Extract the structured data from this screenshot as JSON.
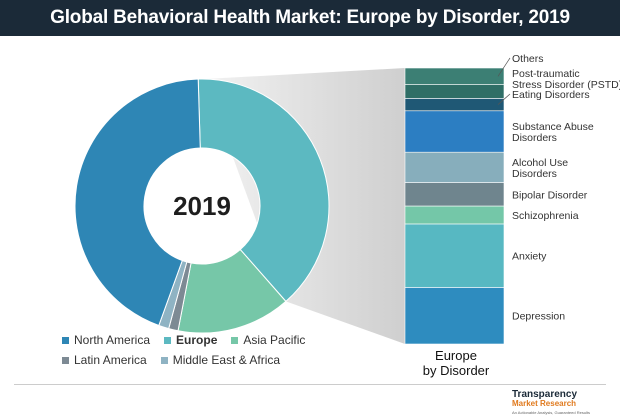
{
  "header": {
    "title": "Global Behavioral Health Market: Europe by Disorder, 2019"
  },
  "colors": {
    "north_america": "#2e86b5",
    "europe": "#5cb9c1",
    "asia_pacific": "#76c7a8",
    "latin_america": "#7d8a94",
    "middle_east_africa": "#8fb3c3",
    "connector": "#d8d8d8",
    "title_bg": "#1b2a38"
  },
  "chart_data": [
    {
      "type": "pie",
      "variant": "donut",
      "center_label": "2019",
      "slices": [
        {
          "name": "North America",
          "value": 44.0,
          "color": "#2e86b5"
        },
        {
          "name": "Europe",
          "value": 39.0,
          "color": "#5cb9c1"
        },
        {
          "name": "Asia Pacific",
          "value": 14.5,
          "color": "#76c7a8"
        },
        {
          "name": "Latin America",
          "value": 1.2,
          "color": "#7d8a94"
        },
        {
          "name": "Middle East & Africa",
          "value": 1.3,
          "color": "#8fb3c3"
        }
      ],
      "legend": [
        {
          "label": "North America",
          "color": "#2e86b5",
          "bold": false
        },
        {
          "label": "Europe",
          "color": "#5cb9c1",
          "bold": true
        },
        {
          "label": "Asia Pacific",
          "color": "#76c7a8",
          "bold": false
        },
        {
          "label": "Latin America",
          "color": "#7d8a94",
          "bold": false
        },
        {
          "label": "Middle East & Africa",
          "color": "#8fb3c3",
          "bold": false
        }
      ]
    },
    {
      "type": "bar",
      "variant": "stacked-100",
      "caption": "Europe\nby Disorder",
      "segments": [
        {
          "name": "Depression",
          "value": 20.5,
          "color": "#2e8cbf"
        },
        {
          "name": "Anxiety",
          "value": 23.0,
          "color": "#57b8c2"
        },
        {
          "name": "Schizophrenia",
          "value": 6.5,
          "color": "#74c7a8"
        },
        {
          "name": "Bipolar Disorder",
          "value": 8.5,
          "color": "#6f858e"
        },
        {
          "name": "Alcohol Use\nDisorders",
          "value": 11.0,
          "color": "#87aebc"
        },
        {
          "name": "Substance Abuse\nDisorders",
          "value": 15.0,
          "color": "#2c7ec2"
        },
        {
          "name": "Eating Disorders",
          "value": 4.5,
          "color": "#1f5875"
        },
        {
          "name": "Post-traumatic\nStress Disorder (PSTD)",
          "value": 5.0,
          "color": "#2f6e66"
        },
        {
          "name": "Others",
          "value": 6.0,
          "color": "#3c7f74"
        }
      ]
    }
  ],
  "logo": {
    "line1": "Transparency",
    "line2": "Market Research",
    "tagline": "An Actionable Analysis, Guaranteed Results"
  }
}
